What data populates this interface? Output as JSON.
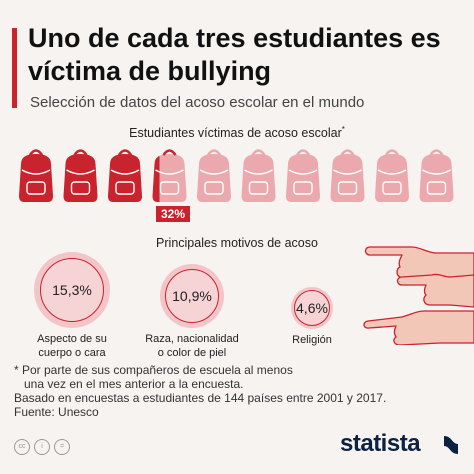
{
  "header": {
    "title": "Uno de cada tres estudiantes es víctima de bullying",
    "subtitle": "Selección de datos del acoso escolar en el mundo"
  },
  "section_victims": {
    "heading": "Estudiantes víctimas de acoso escolar",
    "heading_mark": "*",
    "percent_label": "32%"
  },
  "section_motives": {
    "heading": "Principales motivos de acoso"
  },
  "notes": {
    "line1": "* Por parte de sus compañeros de escuela al menos",
    "line2": "una vez en el mes anterior a la encuesta.",
    "line3": "Basado en encuestas a estudiantes de 144 países entre 2001 y 2017.",
    "source": "Fuente: Unesco"
  },
  "brand": "statista",
  "colors": {
    "accent": "#c9232d",
    "bag_faded": "#eba9ad",
    "circle_fill": "#f4c5c8",
    "background": "#f7f3f1"
  },
  "icons": [
    "backpack-icon",
    "pointing-hand-icon",
    "cc-icon",
    "by-icon",
    "equals-icon"
  ],
  "chart_data": [
    {
      "type": "pictogram",
      "title": "Estudiantes víctimas de acoso escolar*",
      "total_icons": 10,
      "filled_fraction": 0.32,
      "value_label": "32%"
    },
    {
      "type": "bubble",
      "title": "Principales motivos de acoso",
      "categories": [
        "Aspecto de su cuerpo o cara",
        "Raza, nacionalidad o color de piel",
        "Religión"
      ],
      "values": [
        15.3,
        10.9,
        4.6
      ],
      "value_labels": [
        "15,3%",
        "10,9%",
        "4,6%"
      ],
      "caption_lines": [
        [
          "Aspecto de su",
          "cuerpo o cara"
        ],
        [
          "Raza, nacionalidad",
          "o color de piel"
        ],
        [
          "Religión"
        ]
      ]
    }
  ]
}
